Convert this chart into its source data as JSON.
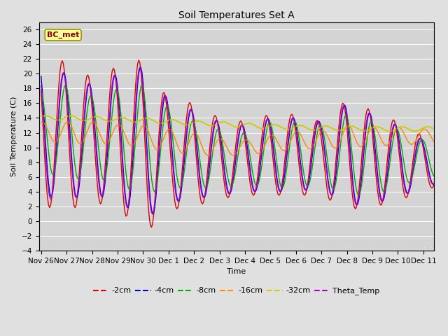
{
  "title": "Soil Temperatures Set A",
  "xlabel": "Time",
  "ylabel": "Soil Temperature (C)",
  "ylim": [
    -4,
    27
  ],
  "yticks": [
    -4,
    -2,
    0,
    2,
    4,
    6,
    8,
    10,
    12,
    14,
    16,
    18,
    20,
    22,
    24,
    26
  ],
  "annotation_text": "BC_met",
  "bg_color": "#e0e0e0",
  "plot_bg_color": "#d4d4d4",
  "series_colors": {
    "-2cm": "#dd0000",
    "-4cm": "#0000cc",
    "-8cm": "#00aa00",
    "-16cm": "#ff8800",
    "-32cm": "#cccc00",
    "Theta_Temp": "#aa00cc"
  },
  "xtick_positions": [
    0,
    24,
    48,
    72,
    96,
    120,
    144,
    168,
    192,
    216,
    240,
    264,
    288,
    312,
    336,
    360
  ],
  "xtick_labels": [
    "Nov 26",
    "Nov 27",
    "Nov 28",
    "Nov 29",
    "Nov 30",
    "Dec 1",
    "Dec 2",
    "Dec 3",
    "Dec 4",
    "Dec 5",
    "Dec 6",
    "Dec 7",
    "Dec 8",
    "Dec 9",
    "Dec 10",
    "Dec 11"
  ]
}
